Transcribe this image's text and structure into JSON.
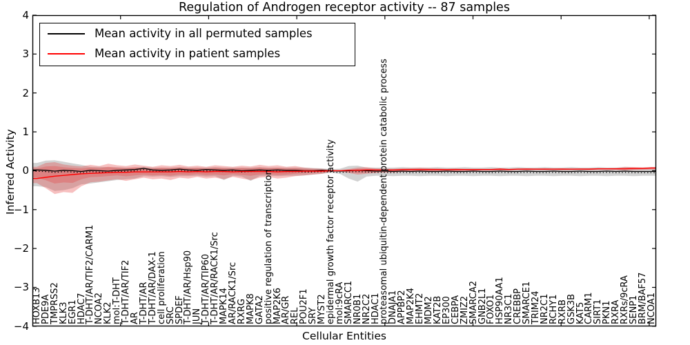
{
  "figure": {
    "title": "Regulation of Androgen receptor activity -- 87 samples",
    "background": "#ffffff",
    "frame_color": "#000000"
  },
  "legend": {
    "items": [
      {
        "label": "Mean activity in all permuted samples",
        "color": "#000000"
      },
      {
        "label": "Mean activity in patient samples",
        "color": "#ff0000"
      }
    ]
  },
  "chart_data": {
    "type": "line",
    "title": "Regulation of Androgen receptor activity -- 87 samples",
    "xlabel": "Cellular Entities",
    "ylabel": "Inferred Activity",
    "ylim": [
      -4,
      4
    ],
    "yticks": [
      4,
      3,
      2,
      1,
      0,
      -1,
      -2,
      -3,
      -4
    ],
    "ytick_labels": [
      "4",
      "3",
      "2",
      "1",
      "0",
      "−1",
      "−2",
      "−3",
      "−4"
    ],
    "grid": false,
    "legend_position": "upper left",
    "categories": [
      "HOXB13",
      "PDE9A",
      "TMPRSS2",
      "KLK3",
      "EGR1",
      "HDAC7",
      "T-DHT/AR/TIF2/CARM1",
      "NCOA2",
      "KLK2",
      "mol:T-DHT",
      "T-DHT/AR/TIF2",
      "AR",
      "T-DHT/AR",
      "T-DHT/AR/DAX-1",
      "cell proliferation",
      "SRC",
      "SPDEF",
      "T-DHT/AR/Hsp90",
      "JUN",
      "T-DHT/AR/TIP60",
      "T-DHT/AR/RACK1/Src",
      "MAPK14",
      "AR/RACK1/Src",
      "RXRG",
      "MAPK8",
      "GATA2",
      "positive regulation of transcription",
      "MAP2K6",
      "AR/GR",
      "REL",
      "POU2F1",
      "SRY",
      "MYST2",
      "epidermal growth factor receptor activity",
      "mol:9cRA",
      "SMARCC1",
      "NR0B1",
      "NR2C2",
      "HDAC1",
      "proteasomal ubiquitin-dependent protein catabolic process",
      "DNAJA1",
      "APPBP2",
      "MAP2K4",
      "EHMT2",
      "MDM2",
      "KAT2B",
      "EP300",
      "CEBPA",
      "ZMIZ2",
      "SMARCA2",
      "GNB2L1",
      "FOXO1",
      "HSP90AA1",
      "NR3C1",
      "CREBBP",
      "SMARCE1",
      "TRIM24",
      "NR2C1",
      "RCHY1",
      "RXRB",
      "GSK3B",
      "KAT5",
      "CARM1",
      "SIRT1",
      "PKN1",
      "RXRA",
      "RXRs/9cRA",
      "SENP1",
      "BRM/BAF57",
      "NCOA1"
    ],
    "series": [
      {
        "name": "Mean activity in all permuted samples",
        "color": "#000000",
        "values": [
          0.02,
          0.01,
          -0.01,
          0.01,
          0.0,
          -0.02,
          0.01,
          0.0,
          -0.01,
          0.01,
          0.02,
          0.03,
          0.06,
          0.02,
          0.01,
          0.02,
          0.04,
          0.02,
          0.01,
          0.03,
          0.02,
          0.01,
          0.02,
          0.0,
          0.01,
          0.02,
          0.01,
          0.02,
          0.01,
          0.01,
          0.0,
          0.0,
          0.01,
          0.0,
          -0.01,
          0.0,
          0.01,
          0.0,
          -0.01,
          -0.01,
          -0.02,
          -0.01,
          -0.02,
          -0.01,
          -0.02,
          -0.02,
          -0.01,
          -0.02,
          -0.02,
          -0.01,
          -0.02,
          -0.02,
          -0.01,
          -0.02,
          -0.02,
          -0.01,
          -0.02,
          -0.02,
          -0.01,
          -0.02,
          -0.02,
          -0.01,
          -0.02,
          -0.02,
          -0.01,
          -0.02,
          -0.01,
          -0.02,
          -0.02,
          -0.02
        ]
      },
      {
        "name": "Mean activity in patient samples",
        "color": "#ff0000",
        "values": [
          -0.2,
          -0.17,
          -0.14,
          -0.12,
          -0.1,
          -0.08,
          -0.07,
          -0.06,
          -0.05,
          -0.04,
          -0.04,
          -0.03,
          -0.03,
          -0.03,
          -0.03,
          -0.03,
          -0.02,
          -0.03,
          -0.02,
          -0.03,
          -0.02,
          -0.02,
          -0.03,
          -0.02,
          -0.02,
          -0.02,
          -0.02,
          -0.03,
          -0.02,
          -0.02,
          -0.01,
          -0.01,
          -0.01,
          0.0,
          0.0,
          0.01,
          0.01,
          0.02,
          0.02,
          0.02,
          0.02,
          0.03,
          0.03,
          0.03,
          0.03,
          0.03,
          0.03,
          0.03,
          0.03,
          0.03,
          0.03,
          0.03,
          0.04,
          0.03,
          0.04,
          0.04,
          0.04,
          0.04,
          0.04,
          0.04,
          0.04,
          0.04,
          0.04,
          0.05,
          0.05,
          0.05,
          0.05,
          0.06,
          0.06,
          0.07
        ]
      }
    ],
    "bands": [
      {
        "name": "permuted-samples-range",
        "color": "#7d7d7d",
        "opacity": 0.35,
        "hi": [
          0.2,
          0.26,
          0.27,
          0.23,
          0.19,
          0.15,
          0.1,
          0.1,
          0.09,
          0.09,
          0.08,
          0.08,
          0.1,
          0.08,
          0.08,
          0.08,
          0.09,
          0.08,
          0.08,
          0.08,
          0.09,
          0.08,
          0.08,
          0.08,
          0.08,
          0.09,
          0.08,
          0.08,
          0.08,
          0.08,
          0.08,
          0.07,
          0.06,
          0.04,
          0.05,
          0.12,
          0.13,
          0.08,
          0.08,
          0.08,
          0.08,
          0.09,
          0.08,
          0.08,
          0.08,
          0.09,
          0.08,
          0.08,
          0.09,
          0.08,
          0.08,
          0.09,
          0.08,
          0.08,
          0.09,
          0.08,
          0.08,
          0.09,
          0.08,
          0.08,
          0.09,
          0.08,
          0.08,
          0.09,
          0.08,
          0.08,
          0.09,
          0.08,
          0.08,
          0.09
        ],
        "lo": [
          -0.4,
          -0.42,
          -0.52,
          -0.5,
          -0.45,
          -0.35,
          -0.33,
          -0.3,
          -0.27,
          -0.24,
          -0.22,
          -0.2,
          -0.14,
          -0.15,
          -0.14,
          -0.16,
          -0.14,
          -0.14,
          -0.13,
          -0.15,
          -0.14,
          -0.24,
          -0.13,
          -0.15,
          -0.26,
          -0.14,
          -0.13,
          -0.14,
          -0.13,
          -0.13,
          -0.12,
          -0.1,
          -0.08,
          -0.05,
          -0.08,
          -0.2,
          -0.28,
          -0.15,
          -0.13,
          -0.13,
          -0.14,
          -0.13,
          -0.13,
          -0.14,
          -0.13,
          -0.13,
          -0.14,
          -0.13,
          -0.13,
          -0.14,
          -0.13,
          -0.13,
          -0.14,
          -0.13,
          -0.13,
          -0.14,
          -0.13,
          -0.13,
          -0.14,
          -0.13,
          -0.13,
          -0.14,
          -0.13,
          -0.13,
          -0.14,
          -0.13,
          -0.13,
          -0.14,
          -0.13,
          -0.13
        ]
      },
      {
        "name": "patient-samples-range",
        "color": "#e63c3c",
        "opacity": 0.32,
        "hi": [
          0.1,
          0.2,
          0.22,
          0.16,
          0.13,
          0.11,
          0.15,
          0.12,
          0.18,
          0.14,
          0.12,
          0.16,
          0.13,
          0.1,
          0.14,
          0.12,
          0.15,
          0.11,
          0.13,
          0.1,
          0.14,
          0.12,
          0.1,
          0.13,
          0.11,
          0.15,
          0.12,
          0.14,
          0.1,
          0.12,
          0.08,
          0.06,
          0.05,
          0.02,
          0.01,
          0.04,
          0.08,
          0.09,
          0.06,
          0.05,
          0.05,
          0.06,
          0.07,
          0.08,
          0.07,
          0.06,
          0.05,
          0.06,
          0.05,
          0.05,
          0.05,
          0.05,
          0.06,
          0.05,
          0.05,
          0.06,
          0.05,
          0.06,
          0.05,
          0.06,
          0.05,
          0.06,
          0.06,
          0.06,
          0.06,
          0.07,
          0.1,
          0.09,
          0.08,
          0.09
        ],
        "lo": [
          -0.32,
          -0.45,
          -0.6,
          -0.55,
          -0.57,
          -0.4,
          -0.3,
          -0.28,
          -0.25,
          -0.22,
          -0.26,
          -0.22,
          -0.18,
          -0.22,
          -0.2,
          -0.24,
          -0.18,
          -0.2,
          -0.16,
          -0.2,
          -0.18,
          -0.22,
          -0.16,
          -0.2,
          -0.24,
          -0.18,
          -0.16,
          -0.2,
          -0.18,
          -0.14,
          -0.12,
          -0.1,
          -0.08,
          -0.03,
          -0.02,
          -0.06,
          -0.1,
          -0.08,
          -0.06,
          -0.05,
          -0.04,
          -0.03,
          -0.02,
          -0.02,
          -0.02,
          -0.01,
          -0.01,
          -0.01,
          0.0,
          0.0,
          0.01,
          0.01,
          0.01,
          0.01,
          0.02,
          0.02,
          0.02,
          0.02,
          0.02,
          0.02,
          0.02,
          0.03,
          0.02,
          0.03,
          0.03,
          0.03,
          0.02,
          0.03,
          0.04,
          0.05
        ]
      }
    ]
  }
}
